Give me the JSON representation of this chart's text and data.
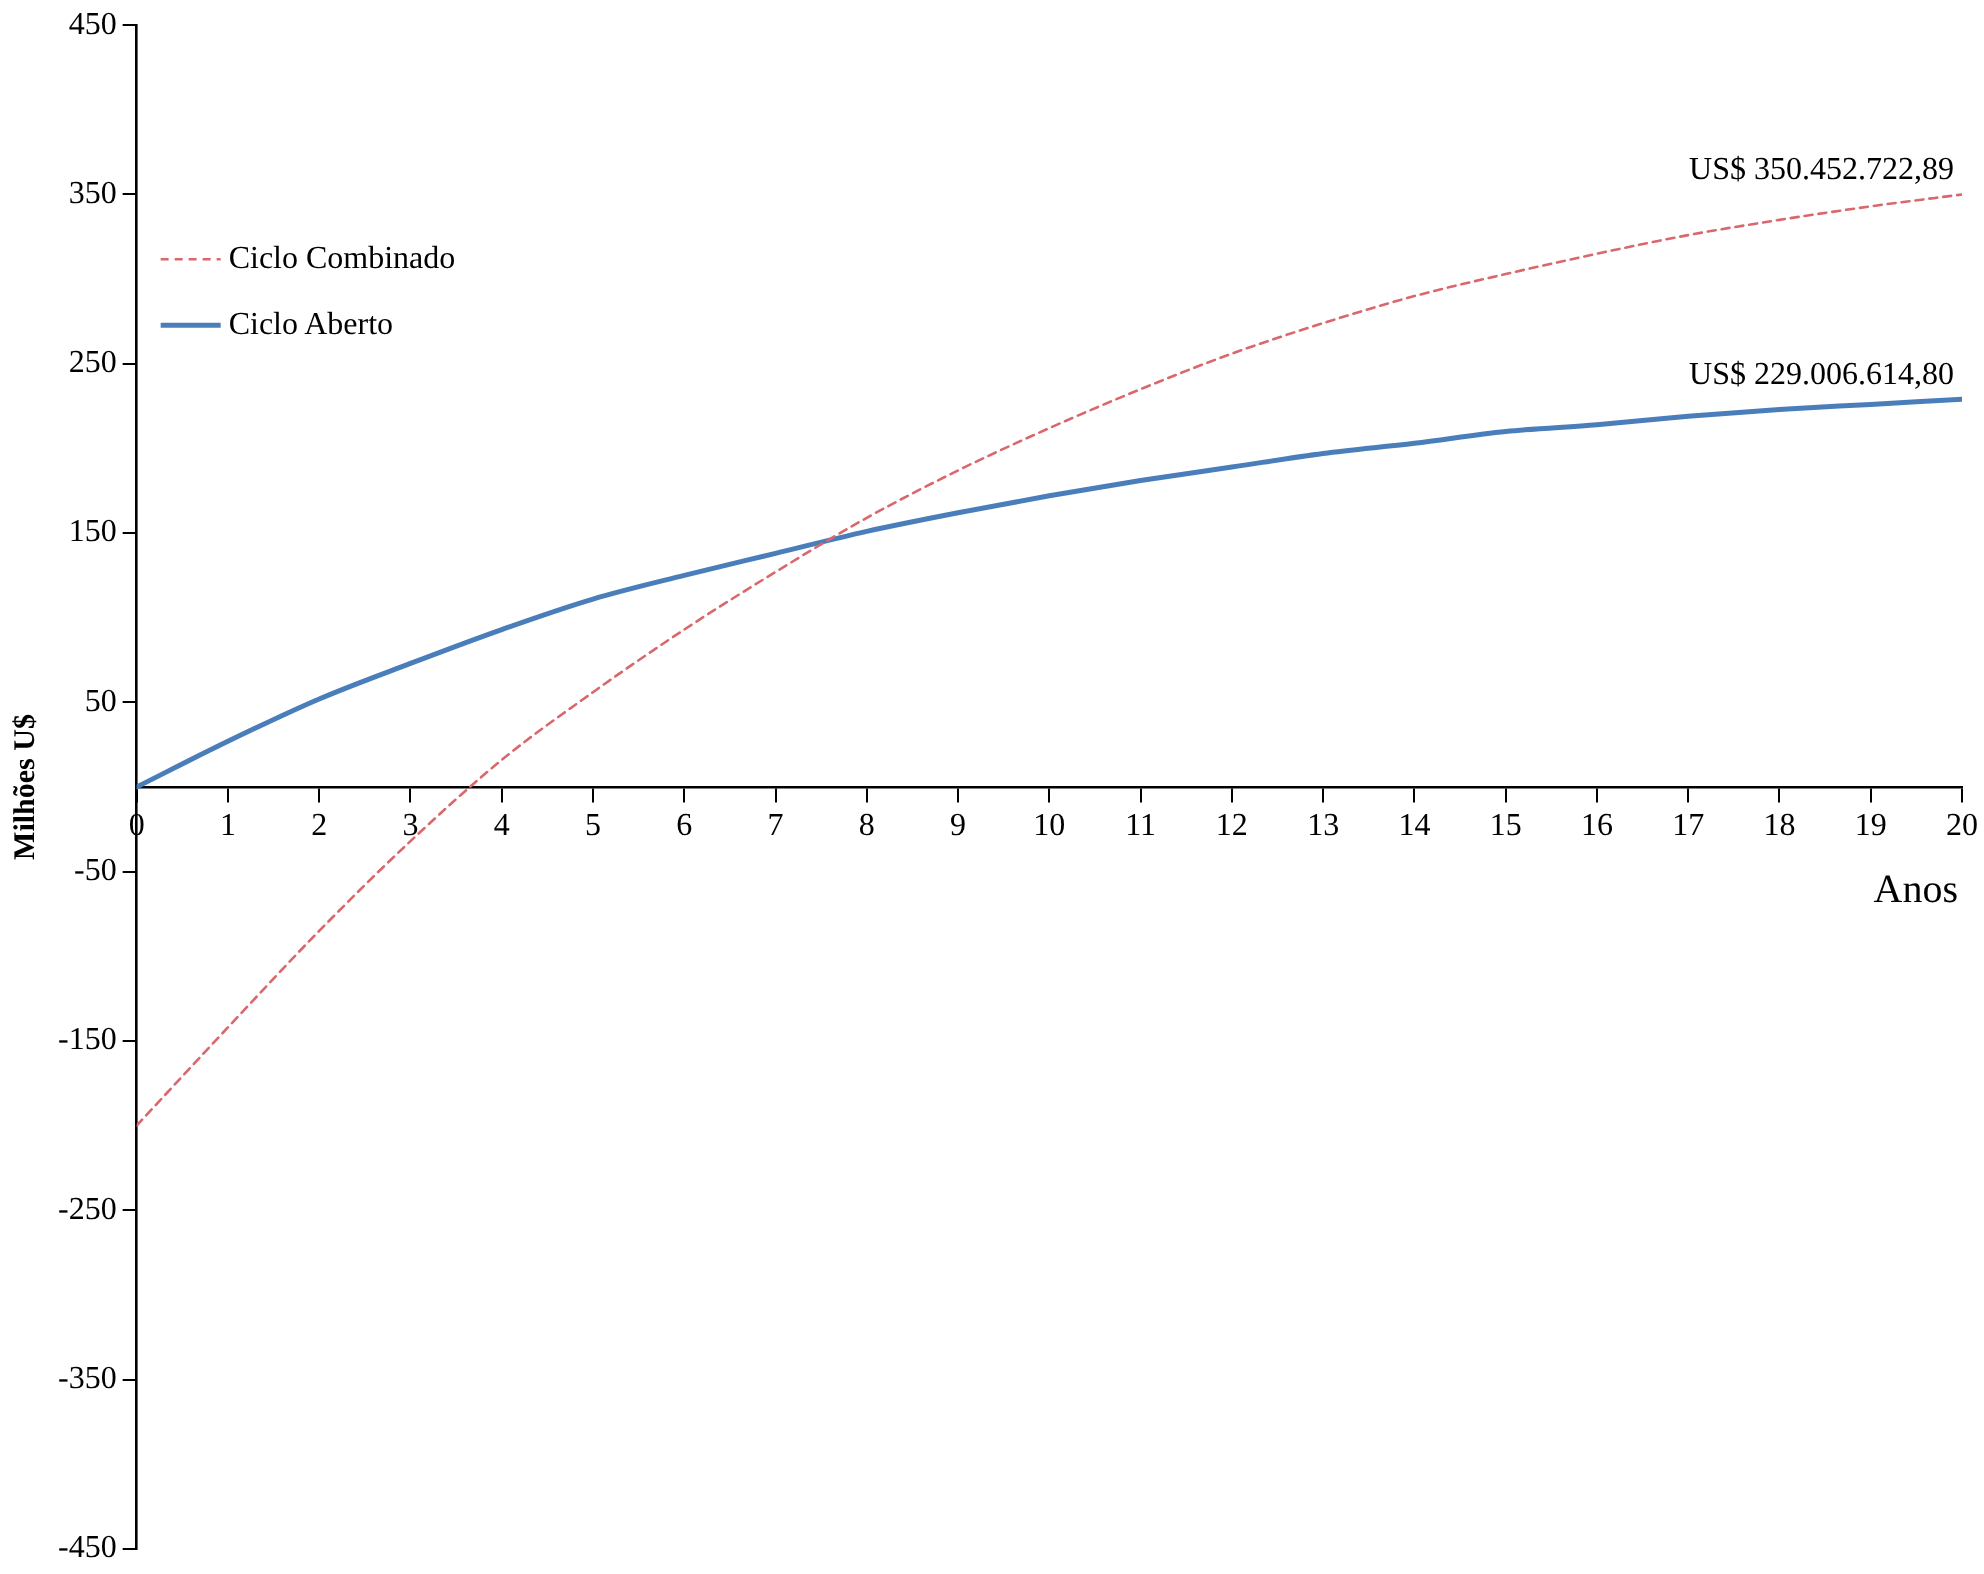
{
  "chart_data": {
    "type": "line",
    "xlabel": "Anos",
    "ylabel": "Milhões U$",
    "x": [
      0,
      1,
      2,
      3,
      4,
      5,
      6,
      7,
      8,
      9,
      10,
      11,
      12,
      13,
      14,
      15,
      16,
      17,
      18,
      19,
      20
    ],
    "xlim": [
      0,
      20
    ],
    "xticks": [
      0,
      1,
      2,
      3,
      4,
      5,
      6,
      7,
      8,
      9,
      10,
      11,
      12,
      13,
      14,
      15,
      16,
      17,
      18,
      19,
      20
    ],
    "ylim": [
      -450,
      450
    ],
    "yticks": [
      -450,
      -350,
      -250,
      -150,
      -50,
      50,
      150,
      250,
      350,
      450
    ],
    "series": [
      {
        "name": "Ciclo Combinado",
        "color": "#d9686c",
        "line_style": "dashed",
        "values": [
          -200,
          -142,
          -85,
          -32,
          16,
          56,
          93,
          127,
          159,
          187,
          212,
          235,
          256,
          274,
          290,
          303,
          315,
          326,
          335,
          343,
          350
        ]
      },
      {
        "name": "Ciclo Aberto",
        "color": "#4a7ebb",
        "line_style": "solid",
        "values": [
          0,
          27,
          52,
          73,
          93,
          111,
          125,
          138,
          151,
          162,
          172,
          181,
          189,
          197,
          203,
          210,
          214,
          219,
          223,
          226,
          229
        ]
      }
    ],
    "annotations": [
      {
        "text": "US$ 350.452.722,89",
        "x": 20,
        "y": 350
      },
      {
        "text": "US$ 229.006.614,80",
        "x": 20,
        "y": 229
      }
    ],
    "marker": "none",
    "grid": false,
    "legend": "top left"
  }
}
